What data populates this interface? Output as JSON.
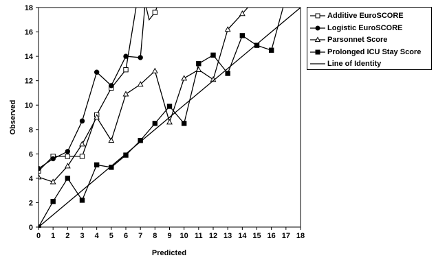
{
  "chart_data": {
    "type": "line",
    "xlabel": "Predicted",
    "ylabel": "Observed",
    "xlim": [
      0,
      18
    ],
    "ylim": [
      0,
      18
    ],
    "x_ticks": [
      "0",
      "1",
      "2",
      "3",
      "4",
      "5",
      "6",
      "7",
      "8",
      "9",
      "10",
      "11",
      "12",
      "13",
      "14",
      "15",
      "16",
      "17",
      "18"
    ],
    "y_ticks": [
      "0",
      "2",
      "4",
      "6",
      "8",
      "10",
      "12",
      "14",
      "16",
      "18"
    ],
    "grid": false,
    "legend_position": "right",
    "series": [
      {
        "name": "Additive EuroSCORE",
        "marker": "square-open",
        "points": [
          [
            0,
            4.6
          ],
          [
            1,
            5.8
          ],
          [
            2,
            5.8
          ],
          [
            3,
            5.8
          ],
          [
            4,
            9.2
          ],
          [
            5,
            11.4
          ],
          [
            6,
            12.9
          ],
          [
            6.7,
            18.0
          ],
          [
            7,
            19.5
          ],
          [
            7.4,
            18.0
          ],
          [
            7.6,
            17.0
          ],
          [
            8,
            17.6
          ],
          [
            8.6,
            19.5
          ]
        ]
      },
      {
        "name": "Logistic EuroSCORE",
        "marker": "circle-filled",
        "points": [
          [
            0,
            4.8
          ],
          [
            1,
            5.6
          ],
          [
            2,
            6.2
          ],
          [
            3,
            8.7
          ],
          [
            4,
            12.7
          ],
          [
            5,
            11.6
          ],
          [
            6,
            14.0
          ],
          [
            7,
            13.9
          ],
          [
            7.3,
            18.0
          ],
          [
            7.6,
            19.5
          ]
        ]
      },
      {
        "name": "Parsonnet Score",
        "marker": "triangle-open",
        "points": [
          [
            0,
            4.1
          ],
          [
            1,
            3.7
          ],
          [
            2,
            5.0
          ],
          [
            3,
            6.8
          ],
          [
            4,
            9.0
          ],
          [
            5,
            7.1
          ],
          [
            6,
            10.9
          ],
          [
            7,
            11.7
          ],
          [
            8,
            12.8
          ],
          [
            9,
            8.6
          ],
          [
            10,
            12.2
          ],
          [
            11,
            12.9
          ],
          [
            12,
            12.1
          ],
          [
            13,
            16.2
          ],
          [
            14,
            17.5
          ],
          [
            14.6,
            18.3
          ],
          [
            15,
            19.5
          ]
        ]
      },
      {
        "name": "Prolonged ICU Stay Score",
        "marker": "square-filled",
        "points": [
          [
            0,
            0.0
          ],
          [
            1,
            2.1
          ],
          [
            2,
            4.0
          ],
          [
            3,
            2.2
          ],
          [
            4,
            5.1
          ],
          [
            5,
            4.9
          ],
          [
            6,
            5.9
          ],
          [
            7,
            7.1
          ],
          [
            8,
            8.5
          ],
          [
            9,
            9.9
          ],
          [
            10,
            8.5
          ],
          [
            11,
            13.4
          ],
          [
            12,
            14.1
          ],
          [
            13,
            12.6
          ],
          [
            14,
            15.7
          ],
          [
            15,
            14.9
          ],
          [
            16,
            14.5
          ],
          [
            16.8,
            18.0
          ],
          [
            17,
            19.5
          ]
        ]
      },
      {
        "name": "Line of Identity",
        "marker": "none",
        "points": [
          [
            0,
            0
          ],
          [
            18,
            18
          ]
        ]
      }
    ]
  }
}
